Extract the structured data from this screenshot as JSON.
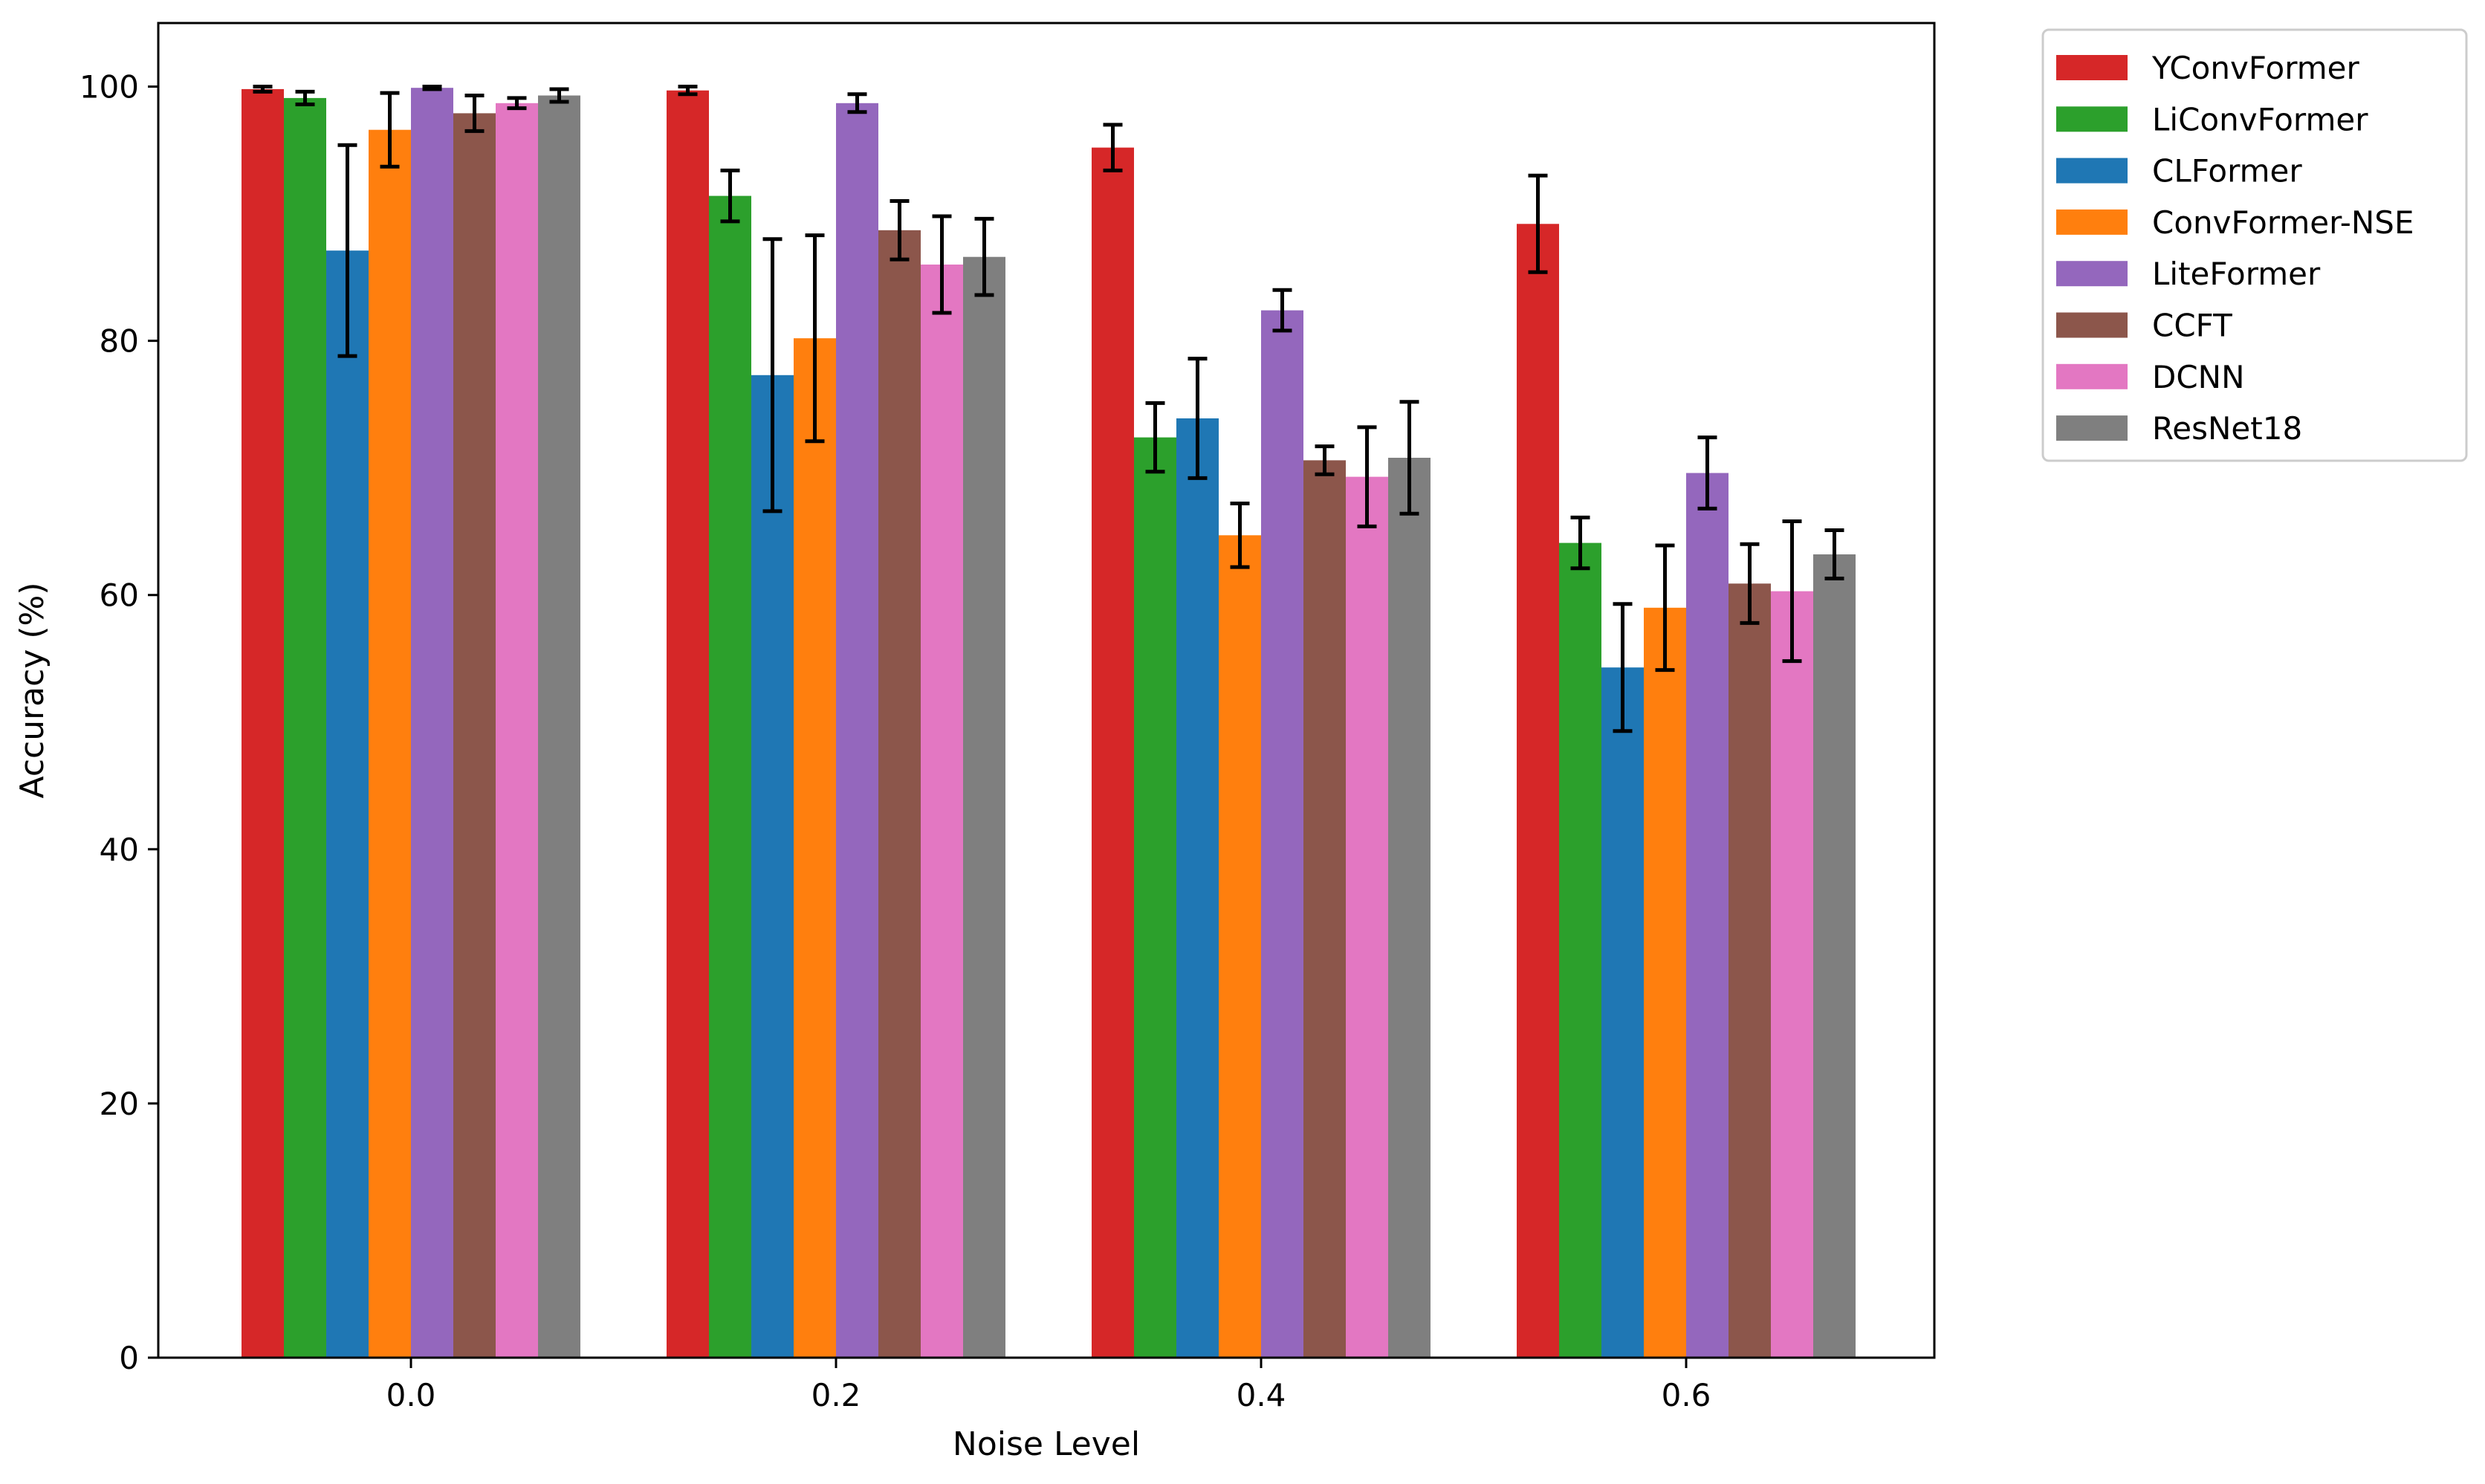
{
  "chart_data": {
    "type": "bar",
    "title": "",
    "xlabel": "Noise Level",
    "ylabel": "Accuracy (%)",
    "ylim": [
      0,
      105
    ],
    "grid": false,
    "legend_position": "outside-top-right",
    "categories": [
      "0.0",
      "0.2",
      "0.4",
      "0.6"
    ],
    "yticks": [
      "0",
      "20",
      "40",
      "60",
      "80",
      "100"
    ],
    "series": [
      {
        "name": "YConvFormer",
        "color": "#d62728",
        "values": [
          99.8,
          99.7,
          95.2,
          89.2
        ],
        "errors": [
          0.2,
          0.3,
          1.8,
          3.8
        ]
      },
      {
        "name": "LiConvFormer",
        "color": "#2ca02c",
        "values": [
          99.1,
          91.4,
          72.4,
          64.1
        ],
        "errors": [
          0.5,
          2.0,
          2.7,
          2.0
        ]
      },
      {
        "name": "CLFormer",
        "color": "#1f77b4",
        "values": [
          87.1,
          77.3,
          73.9,
          54.3
        ],
        "errors": [
          8.3,
          10.7,
          4.7,
          5.0
        ]
      },
      {
        "name": "ConvFormer-NSE",
        "color": "#ff7f0e",
        "values": [
          96.6,
          80.2,
          64.7,
          59.0
        ],
        "errors": [
          2.9,
          8.1,
          2.5,
          4.9
        ]
      },
      {
        "name": "LiteFormer",
        "color": "#9467bd",
        "values": [
          99.9,
          98.7,
          82.4,
          69.6
        ],
        "errors": [
          0.1,
          0.7,
          1.6,
          2.8
        ]
      },
      {
        "name": "CCFT",
        "color": "#8c564b",
        "values": [
          97.9,
          88.7,
          70.6,
          60.9
        ],
        "errors": [
          1.4,
          2.3,
          1.1,
          3.1
        ]
      },
      {
        "name": "DCNN",
        "color": "#e377c2",
        "values": [
          98.7,
          86.0,
          69.3,
          60.3
        ],
        "errors": [
          0.4,
          3.8,
          3.9,
          5.5
        ]
      },
      {
        "name": "ResNet18",
        "color": "#7f7f7f",
        "values": [
          99.3,
          86.6,
          70.8,
          63.2
        ],
        "errors": [
          0.5,
          3.0,
          4.4,
          1.9
        ]
      }
    ]
  }
}
